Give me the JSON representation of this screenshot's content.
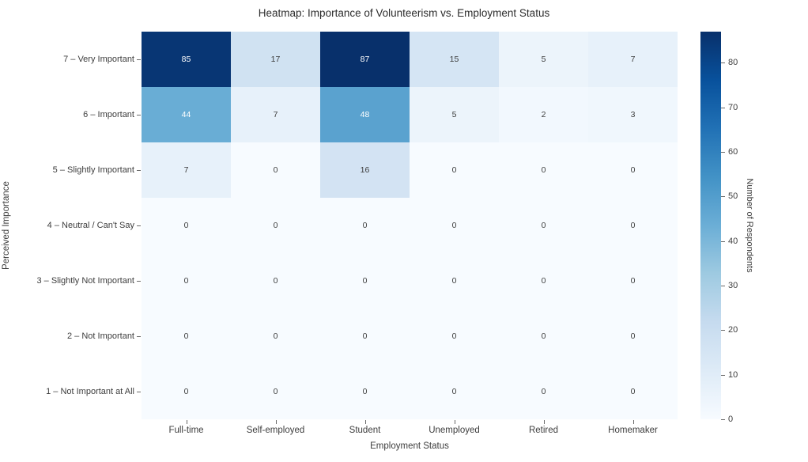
{
  "chart_data": {
    "type": "heatmap",
    "title": "Heatmap: Importance of Volunteerism vs. Employment Status",
    "xlabel": "Employment Status",
    "ylabel": "Perceived Importance",
    "colorbar_label": "Number of Respondents",
    "x_categories": [
      "Full-time",
      "Self-employed",
      "Student",
      "Unemployed",
      "Retired",
      "Homemaker"
    ],
    "y_categories": [
      "7 – Very Important",
      "6 – Important",
      "5 – Slightly Important",
      "4 – Neutral / Can't Say",
      "3 – Slightly Not Important",
      "2 – Not Important",
      "1 – Not Important at All"
    ],
    "values": [
      [
        85,
        17,
        87,
        15,
        5,
        7
      ],
      [
        44,
        7,
        48,
        5,
        2,
        3
      ],
      [
        7,
        0,
        16,
        0,
        0,
        0
      ],
      [
        0,
        0,
        0,
        0,
        0,
        0
      ],
      [
        0,
        0,
        0,
        0,
        0,
        0
      ],
      [
        0,
        0,
        0,
        0,
        0,
        0
      ],
      [
        0,
        0,
        0,
        0,
        0,
        0
      ]
    ],
    "zmin": 0,
    "zmax": 87,
    "colorbar_ticks": [
      0,
      10,
      20,
      30,
      40,
      50,
      60,
      70,
      80
    ],
    "colorscale_name": "Blues",
    "colorscale_stops": [
      {
        "pos": 0.0,
        "color": "#f7fbff"
      },
      {
        "pos": 0.125,
        "color": "#deebf7"
      },
      {
        "pos": 0.25,
        "color": "#c6dbef"
      },
      {
        "pos": 0.375,
        "color": "#9ecae1"
      },
      {
        "pos": 0.5,
        "color": "#6baed6"
      },
      {
        "pos": 0.625,
        "color": "#4292c6"
      },
      {
        "pos": 0.75,
        "color": "#2171b5"
      },
      {
        "pos": 0.875,
        "color": "#08519c"
      },
      {
        "pos": 1.0,
        "color": "#08306b"
      }
    ],
    "grid": false,
    "legend_position": "colorbar-right",
    "background_color": "#ffffff",
    "text_colors": {
      "title": "#2d2d2d",
      "axis": "#3d3d3d",
      "cell_light": "#3d3d3d",
      "cell_dark": "#ffffff"
    }
  }
}
